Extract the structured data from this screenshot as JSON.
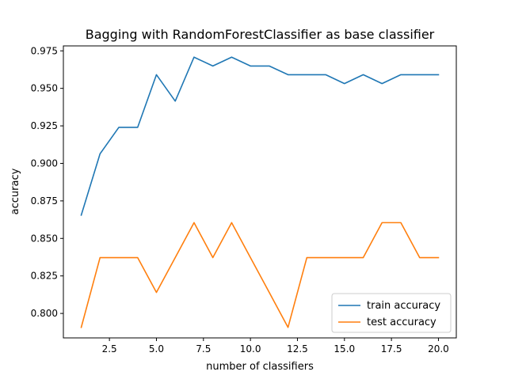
{
  "chart_data": {
    "type": "line",
    "title": "Bagging with RandomForestClassifier as base classifier",
    "xlabel": "number of classifiers",
    "ylabel": "accuracy",
    "xlim": [
      0.05,
      20.95
    ],
    "ylim": [
      0.7837,
      0.9783
    ],
    "x_ticks": [
      2.5,
      5.0,
      7.5,
      10.0,
      12.5,
      15.0,
      17.5,
      20.0
    ],
    "x_tick_labels": [
      "2.5",
      "5.0",
      "7.5",
      "10.0",
      "12.5",
      "15.0",
      "17.5",
      "20.0"
    ],
    "y_ticks": [
      0.8,
      0.825,
      0.85,
      0.875,
      0.9,
      0.925,
      0.95,
      0.975
    ],
    "y_tick_labels": [
      "0.800",
      "0.825",
      "0.850",
      "0.875",
      "0.900",
      "0.925",
      "0.950",
      "0.975"
    ],
    "grid": false,
    "legend_position": "lower-right",
    "x": [
      1,
      2,
      3,
      4,
      5,
      6,
      7,
      8,
      9,
      10,
      11,
      12,
      13,
      14,
      15,
      16,
      17,
      18,
      19,
      20
    ],
    "series": [
      {
        "name": "train accuracy",
        "color": "#1f77b4",
        "values": [
          0.8655,
          0.9064,
          0.924,
          0.924,
          0.9591,
          0.9415,
          0.9708,
          0.9649,
          0.9708,
          0.9649,
          0.9649,
          0.9591,
          0.9591,
          0.9591,
          0.9532,
          0.9591,
          0.9532,
          0.9591,
          0.9591,
          0.9591
        ]
      },
      {
        "name": "test accuracy",
        "color": "#ff7f0e",
        "values": [
          0.7907,
          0.8372,
          0.8372,
          0.8372,
          0.814,
          0.8372,
          0.8605,
          0.8372,
          0.8605,
          0.8372,
          0.814,
          0.7907,
          0.8372,
          0.8372,
          0.8372,
          0.8372,
          0.8605,
          0.8605,
          0.8372,
          0.8372
        ]
      }
    ]
  }
}
